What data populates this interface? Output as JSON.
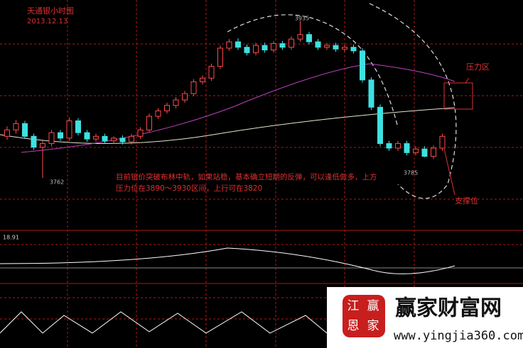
{
  "chart_data": {
    "type": "candlestick",
    "title": "天通银小时图",
    "subtitle": "2013.12.13",
    "ylim": [
      3724,
      3958
    ],
    "up_color": "#ff4a4a",
    "down_color": "#3fe0e0",
    "open": [
      3808,
      3815,
      3822,
      3808,
      3796,
      3800,
      3812,
      3806,
      3825,
      3812,
      3805,
      3808,
      3803,
      3806,
      3802,
      3808,
      3815,
      3830,
      3836,
      3842,
      3848,
      3855,
      3868,
      3872,
      3885,
      3905,
      3912,
      3906,
      3900,
      3908,
      3903,
      3910,
      3906,
      3915,
      3920,
      3912,
      3906,
      3908,
      3904,
      3906,
      3902,
      3870,
      3840,
      3800,
      3795,
      3800,
      3790,
      3794,
      3786,
      3795
    ],
    "close": [
      3815,
      3822,
      3808,
      3796,
      3800,
      3812,
      3806,
      3825,
      3812,
      3805,
      3808,
      3803,
      3806,
      3802,
      3808,
      3815,
      3830,
      3836,
      3842,
      3848,
      3855,
      3868,
      3872,
      3885,
      3905,
      3912,
      3906,
      3900,
      3908,
      3903,
      3910,
      3906,
      3915,
      3920,
      3912,
      3906,
      3908,
      3904,
      3906,
      3902,
      3870,
      3840,
      3800,
      3795,
      3800,
      3790,
      3794,
      3786,
      3795,
      3808
    ],
    "high": [
      3819,
      3826,
      3825,
      3811,
      3803,
      3815,
      3815,
      3829,
      3828,
      3815,
      3811,
      3811,
      3808,
      3809,
      3811,
      3818,
      3833,
      3839,
      3845,
      3851,
      3858,
      3871,
      3875,
      3888,
      3908,
      3915,
      3916,
      3909,
      3911,
      3911,
      3913,
      3913,
      3918,
      3935,
      3923,
      3915,
      3911,
      3911,
      3909,
      3909,
      3905,
      3873,
      3843,
      3803,
      3803,
      3803,
      3797,
      3797,
      3798,
      3811
    ],
    "low": [
      3804,
      3811,
      3805,
      3793,
      3762,
      3797,
      3803,
      3803,
      3809,
      3802,
      3802,
      3800,
      3800,
      3799,
      3799,
      3805,
      3812,
      3827,
      3833,
      3839,
      3845,
      3852,
      3865,
      3869,
      3882,
      3902,
      3903,
      3897,
      3897,
      3900,
      3900,
      3903,
      3903,
      3912,
      3909,
      3903,
      3903,
      3901,
      3901,
      3899,
      3867,
      3837,
      3797,
      3792,
      3792,
      3787,
      3787,
      3785,
      3783,
      3792
    ],
    "price_labels": [
      3762,
      3785,
      3935
    ],
    "annotation": [
      "目前银价突破布林中轨，如果站稳，基本确立短期的反弹，可以逢低做多，上方",
      "压力位在3890～3930区间，上行可在3820"
    ],
    "pressure_label": "压力区",
    "support_label": "支撑位",
    "macd_label": "18.91"
  },
  "watermark": {
    "brand": "赢家财富网",
    "seal": [
      "江",
      "赢",
      "恩",
      "家"
    ],
    "url": "www.yingjia360.com"
  }
}
